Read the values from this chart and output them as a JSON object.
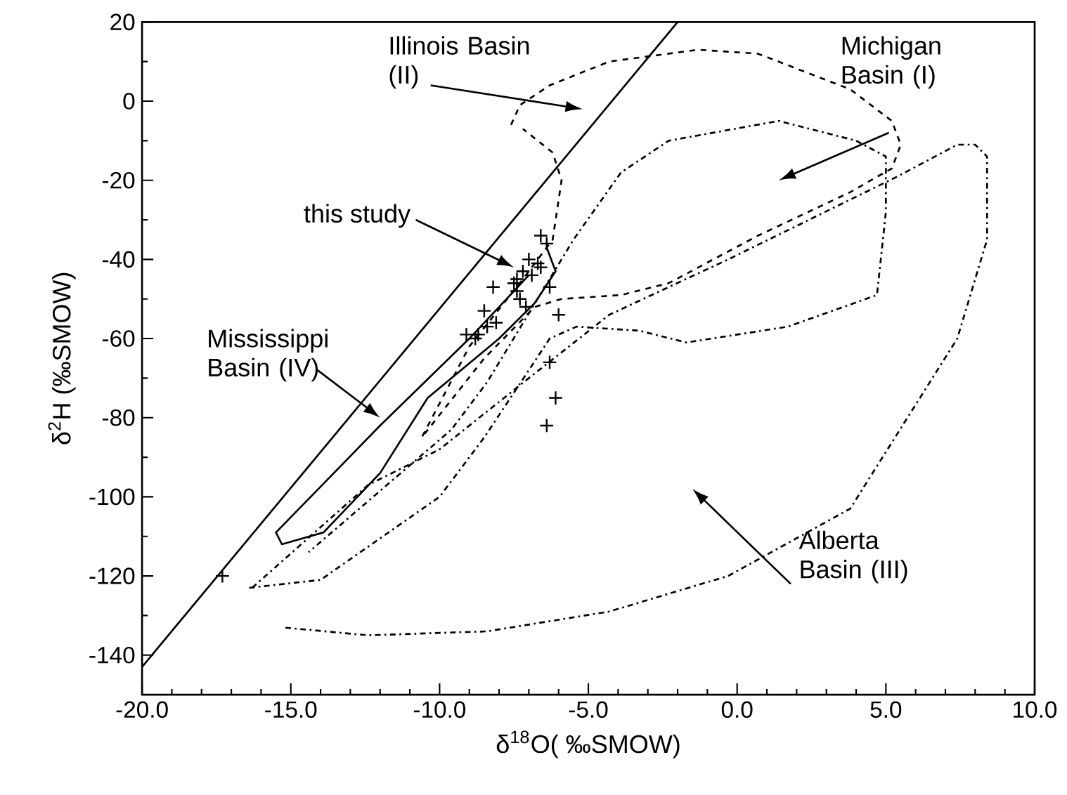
{
  "chart_data": {
    "type": "scatter",
    "xlabel": "δ$^{18}$O( ‰SMOW)",
    "ylabel": "δ$^{2}$H (‰SMOW)",
    "xlim": [
      -20,
      10
    ],
    "ylim": [
      -150,
      20
    ],
    "xticks": [
      {
        "value": -20,
        "label": "-20.0"
      },
      {
        "value": -15,
        "label": "-15.0"
      },
      {
        "value": -10,
        "label": "-10.0"
      },
      {
        "value": -5,
        "label": "-5.0"
      },
      {
        "value": 0,
        "label": "0.0"
      },
      {
        "value": 5,
        "label": "5.0"
      },
      {
        "value": 10,
        "label": "10.0"
      }
    ],
    "yticks": [
      -140,
      -120,
      -100,
      -80,
      -60,
      -40,
      -20,
      0,
      20
    ],
    "marker": "plus",
    "series": [
      {
        "color": "#000000",
        "x": [
          -6.6,
          -6.4,
          -7.0,
          -6.7,
          -6.6,
          -7.2,
          -6.9,
          -7.4,
          -7.5,
          -8.2,
          -6.3,
          -7.4,
          -7.3,
          -7.1,
          -6.0,
          -8.5,
          -8.1,
          -8.4,
          -9.1,
          -8.7,
          -8.8,
          -6.3,
          -6.1,
          -6.4,
          -17.3
        ],
        "values": [
          -34,
          -36,
          -40,
          -41,
          -42,
          -43,
          -44,
          -45,
          -46,
          -47,
          -47,
          -48,
          -50,
          -52,
          -54,
          -53,
          -56,
          -57,
          -59,
          -59,
          -60,
          -66,
          -75,
          -82,
          -120
        ]
      },
      {
        "type": "line",
        "line_style": "solid",
        "marker": "none",
        "color": "#000000",
        "x": [
          -20,
          -2
        ],
        "values": [
          -143,
          20
        ]
      },
      {
        "type": "line",
        "line_style": "dashdot",
        "marker": "none",
        "color": "#000000",
        "x": [
          -16.4,
          -14,
          -10,
          -8.5,
          -7,
          -6.3,
          -5.4,
          -3.3,
          -1.7,
          1.7,
          4.7,
          5.0,
          5.0,
          4.0,
          1.4,
          -2.3,
          -3.9,
          -5.5,
          -8.4,
          -9.6,
          -14.4
        ],
        "values": [
          -123,
          -121,
          -100,
          -85,
          -68,
          -60,
          -57,
          -58,
          -61,
          -57,
          -49,
          -28,
          -14,
          -10,
          -5,
          -10,
          -18,
          -35,
          -71,
          -83,
          -114
        ]
      },
      {
        "type": "line",
        "line_style": "dashed",
        "marker": "none",
        "color": "#000000",
        "x": [
          -7.6,
          -7.3,
          -6.3,
          -4.3,
          -1.3,
          0.7,
          3.8,
          5.2,
          5.5,
          5.2,
          3.8,
          0.7,
          -2.3,
          -3.9,
          -5.9,
          -6.8,
          -8.5,
          -10.6,
          -9.0,
          -7.2,
          -6.2,
          -5.9,
          -6.2,
          -7.2
        ],
        "values": [
          -6,
          -1,
          4,
          10,
          13,
          12,
          3,
          -5,
          -11,
          -17,
          -23,
          -34,
          -46,
          -49,
          -50,
          -52,
          -65,
          -85,
          -62,
          -45,
          -35,
          -20,
          -13,
          -7
        ]
      },
      {
        "type": "line",
        "line_style": "dashdot",
        "marker": "none",
        "color": "#000000",
        "x": [
          -16.3,
          -12.4,
          -10,
          -7,
          -4.3,
          -0.3,
          5.4,
          7.4,
          8.0,
          8.4,
          8.4,
          7.4,
          3.8,
          -0.3,
          -4.3,
          -8.4,
          -12.4,
          -15.3
        ],
        "values": [
          -123,
          -97,
          -88,
          -70,
          -54,
          -40,
          -19,
          -11,
          -11,
          -14,
          -35,
          -60,
          -103,
          -120,
          -129,
          -134,
          -135,
          -133
        ]
      },
      {
        "type": "line",
        "line_style": "solid",
        "marker": "none",
        "color": "#000000",
        "x": [
          -6.4,
          -6.1,
          -6.8,
          -8.0,
          -10.4,
          -12.0,
          -13.9,
          -15.3,
          -15.5,
          -12.0,
          -9.0,
          -7.0
        ],
        "values": [
          -37,
          -43,
          -51,
          -60,
          -75,
          -94,
          -109,
          -112,
          -109,
          -82,
          -60,
          -44
        ]
      }
    ],
    "annotations": [
      "Illinois Basin (II)",
      "Michigan Basin (I)",
      "this study",
      "Mississippi Basin (IV)",
      "Alberta Basin (III)"
    ]
  }
}
